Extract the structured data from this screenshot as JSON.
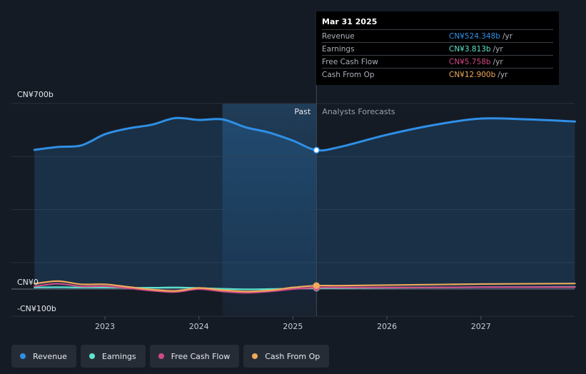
{
  "colors": {
    "revenue": "#2f8fe6",
    "earnings": "#5ee3cf",
    "free_cash_flow": "#d04a86",
    "cash_from_op": "#efa95a",
    "background": "#151b24"
  },
  "tooltip": {
    "date": "Mar 31 2025",
    "rows": [
      {
        "name": "Revenue",
        "value": "CN¥524.348b",
        "unit": "/yr",
        "color": "#2f8fe6"
      },
      {
        "name": "Earnings",
        "value": "CN¥3.813b",
        "unit": "/yr",
        "color": "#5ee3cf"
      },
      {
        "name": "Free Cash Flow",
        "value": "CN¥5.758b",
        "unit": "/yr",
        "color": "#d04a86"
      },
      {
        "name": "Cash From Op",
        "value": "CN¥12.900b",
        "unit": "/yr",
        "color": "#efa95a"
      }
    ]
  },
  "legend": [
    {
      "label": "Revenue",
      "color": "#2f8fe6"
    },
    {
      "label": "Earnings",
      "color": "#5ee3cf"
    },
    {
      "label": "Free Cash Flow",
      "color": "#d04a86"
    },
    {
      "label": "Cash From Op",
      "color": "#efa95a"
    }
  ],
  "chart_data": {
    "type": "area",
    "title": "",
    "xlabel": "",
    "ylabel": "",
    "y_top_label": "CN¥700b",
    "y_zero_label": "CN¥0",
    "y_bottom_label": "-CN¥100b",
    "ylim": [
      -100,
      700
    ],
    "xlim": [
      2022.33,
      2028.0
    ],
    "x_ticks": [
      {
        "value": 2023,
        "label": "2023"
      },
      {
        "value": 2024,
        "label": "2024"
      },
      {
        "value": 2025,
        "label": "2025"
      },
      {
        "value": 2026,
        "label": "2026"
      },
      {
        "value": 2027,
        "label": "2027"
      }
    ],
    "past_label": "Past",
    "forecast_label": "Analysts Forecasts",
    "divider_x": 2025.25,
    "highlight_start_x": 2024.25,
    "grid": true,
    "legend_position": "bottom-left",
    "series": [
      {
        "name": "Revenue",
        "key": "revenue",
        "area": true,
        "x": [
          2022.25,
          2022.5,
          2022.75,
          2023.0,
          2023.25,
          2023.5,
          2023.75,
          2024.0,
          2024.25,
          2024.5,
          2024.75,
          2025.0,
          2025.25,
          2025.5,
          2026.0,
          2026.5,
          2027.0,
          2027.5,
          2028.0
        ],
        "y": [
          525,
          536,
          542,
          584,
          606,
          620,
          645,
          638,
          640,
          610,
          590,
          560,
          524,
          536,
          582,
          619,
          643,
          640,
          632
        ]
      },
      {
        "name": "Earnings",
        "key": "earnings",
        "x": [
          2022.25,
          2022.5,
          2022.75,
          2023.0,
          2023.25,
          2023.5,
          2023.75,
          2024.0,
          2024.25,
          2024.5,
          2024.75,
          2025.0,
          2025.25,
          2025.5,
          2026.0,
          2026.5,
          2027.0,
          2027.5,
          2028.0
        ],
        "y": [
          6,
          7,
          6,
          6,
          5,
          5,
          6,
          4,
          1,
          -1,
          0,
          2,
          3.8,
          4,
          5,
          6,
          7,
          7.5,
          8
        ]
      },
      {
        "name": "Free Cash Flow",
        "key": "free_cash_flow",
        "x": [
          2022.25,
          2022.5,
          2022.75,
          2023.0,
          2023.25,
          2023.5,
          2023.75,
          2024.0,
          2024.25,
          2024.5,
          2024.75,
          2025.0,
          2025.25,
          2025.5,
          2026.0,
          2026.5,
          2027.0,
          2027.5,
          2028.0
        ],
        "y": [
          10,
          20,
          10,
          11,
          3,
          -6,
          -11,
          0,
          -9,
          -14,
          -9,
          0,
          5.8,
          6,
          6,
          6,
          7,
          7,
          7
        ]
      },
      {
        "name": "Cash From Op",
        "key": "cash_from_op",
        "x": [
          2022.25,
          2022.5,
          2022.75,
          2023.0,
          2023.25,
          2023.5,
          2023.75,
          2024.0,
          2024.25,
          2024.5,
          2024.75,
          2025.0,
          2025.25,
          2025.5,
          2026.0,
          2026.5,
          2027.0,
          2027.5,
          2028.0
        ],
        "y": [
          20,
          30,
          18,
          18,
          8,
          -2,
          -7,
          4,
          -4,
          -9,
          -5,
          6,
          12.9,
          13,
          15,
          17,
          19,
          20,
          21
        ]
      }
    ]
  }
}
